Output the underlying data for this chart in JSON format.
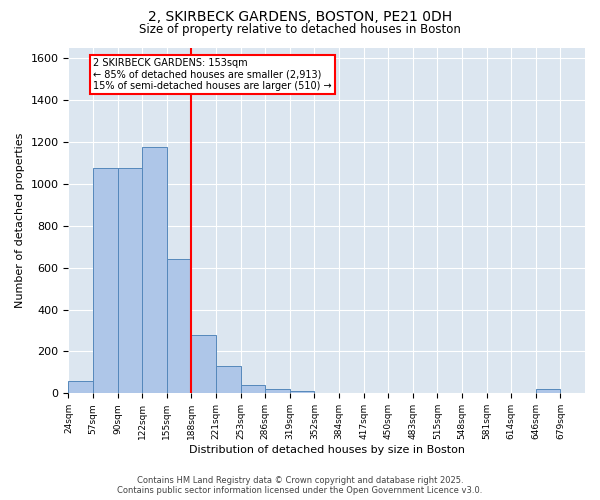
{
  "title1": "2, SKIRBECK GARDENS, BOSTON, PE21 0DH",
  "title2": "Size of property relative to detached houses in Boston",
  "xlabel": "Distribution of detached houses by size in Boston",
  "ylabel": "Number of detached properties",
  "bin_labels": [
    "24sqm",
    "57sqm",
    "90sqm",
    "122sqm",
    "155sqm",
    "188sqm",
    "221sqm",
    "253sqm",
    "286sqm",
    "319sqm",
    "352sqm",
    "384sqm",
    "417sqm",
    "450sqm",
    "483sqm",
    "515sqm",
    "548sqm",
    "581sqm",
    "614sqm",
    "646sqm",
    "679sqm"
  ],
  "bar_heights": [
    60,
    1075,
    1075,
    1175,
    640,
    280,
    130,
    40,
    20,
    10,
    0,
    0,
    0,
    0,
    0,
    0,
    0,
    0,
    0,
    20,
    0
  ],
  "bar_color": "#aec6e8",
  "bar_edge_color": "#5588bb",
  "red_line_index": 4,
  "ylim": [
    0,
    1650
  ],
  "yticks": [
    0,
    200,
    400,
    600,
    800,
    1000,
    1200,
    1400,
    1600
  ],
  "annotation_text": "2 SKIRBECK GARDENS: 153sqm\n← 85% of detached houses are smaller (2,913)\n15% of semi-detached houses are larger (510) →",
  "annotation_box_color": "white",
  "annotation_box_edge": "red",
  "bg_color": "#dce6f0",
  "footer1": "Contains HM Land Registry data © Crown copyright and database right 2025.",
  "footer2": "Contains public sector information licensed under the Open Government Licence v3.0."
}
